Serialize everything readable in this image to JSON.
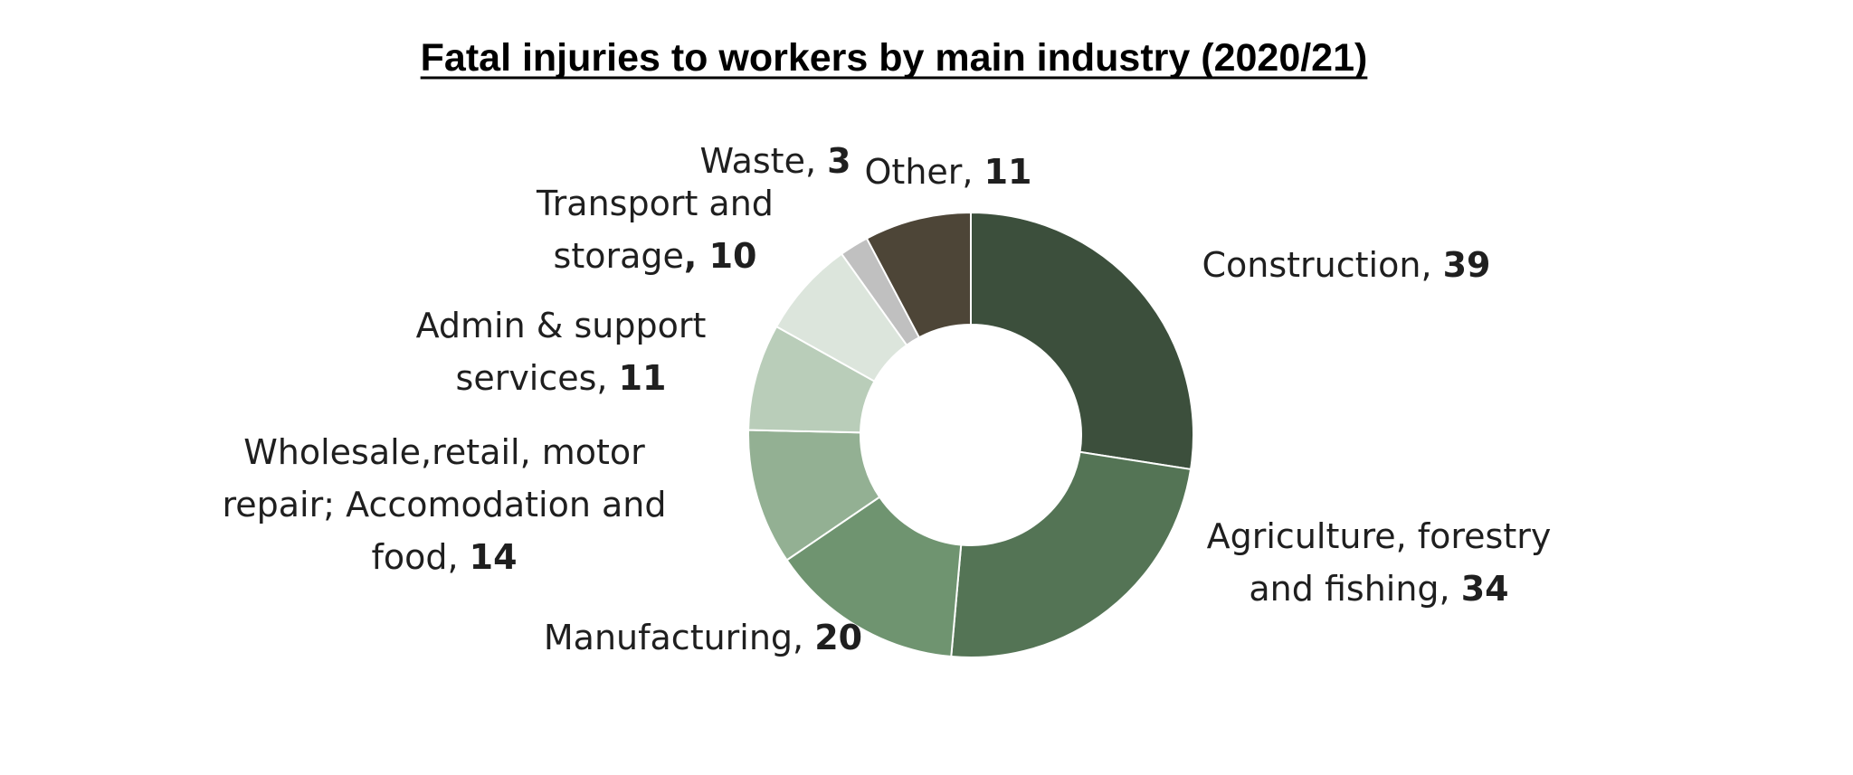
{
  "chart_data": {
    "type": "pie",
    "variant": "donut",
    "title": "Fatal injuries to workers by main industry (2020/21)",
    "title_underlined": true,
    "legend": "none",
    "labels_position": "outside",
    "segments": [
      {
        "label": "Construction",
        "label_lines": [
          "Construction, "
        ],
        "value": 39,
        "value_text": "39",
        "color": "#3c4f3c"
      },
      {
        "label": "Agriculture, forestry and fishing",
        "label_lines": [
          "Agriculture, forestry",
          "and fishing, "
        ],
        "value": 34,
        "value_text": "34",
        "color": "#547455"
      },
      {
        "label": "Manufacturing",
        "label_lines": [
          "Manufacturing, "
        ],
        "value": 20,
        "value_text": "20",
        "color": "#6f9470"
      },
      {
        "label": "Wholesale,retail, motor repair; Accomodation and food",
        "label_lines": [
          "Wholesale,retail, motor",
          "repair; Accomodation and",
          "food, "
        ],
        "value": 14,
        "value_text": "14",
        "color": "#93b093"
      },
      {
        "label": "Admin & support services",
        "label_lines": [
          "Admin & support",
          "services, "
        ],
        "value": 11,
        "value_text": "11",
        "color": "#b9cdb9"
      },
      {
        "label": "Transport and storage",
        "label_lines": [
          "Transport and",
          "storage"
        ],
        "value": 10,
        "value_text": ", 10",
        "color": "#dce5dc"
      },
      {
        "label": "Waste",
        "label_lines": [
          "Waste, "
        ],
        "value": 3,
        "value_text": "3",
        "color": "#c0c0c0"
      },
      {
        "label": "Other",
        "label_lines": [
          "Other, "
        ],
        "value": 11,
        "value_text": "11",
        "color": "#4d4537"
      }
    ]
  }
}
